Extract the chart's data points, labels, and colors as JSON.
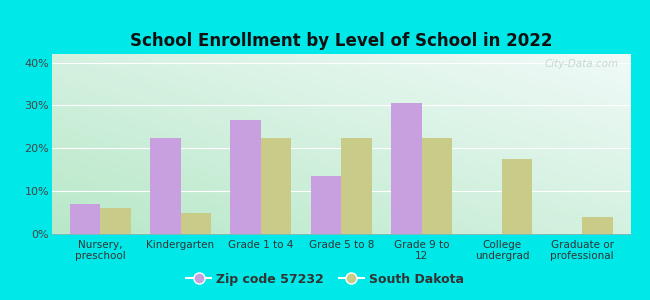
{
  "title": "School Enrollment by Level of School in 2022",
  "categories": [
    "Nursery,\npreschool",
    "Kindergarten",
    "Grade 1 to 4",
    "Grade 5 to 8",
    "Grade 9 to\n12",
    "College\nundergrad",
    "Graduate or\nprofessional"
  ],
  "zip_values": [
    7.0,
    22.5,
    26.5,
    13.5,
    30.5,
    0.0,
    0.0
  ],
  "sd_values": [
    6.0,
    5.0,
    22.5,
    22.5,
    22.5,
    17.5,
    4.0
  ],
  "zip_color": "#c8a0e0",
  "sd_color": "#c8cc88",
  "background_outer": "#00e8e8",
  "grad_bottom_left": "#b8e8c8",
  "grad_top_right": "#f0faf8",
  "ylim": [
    0,
    42
  ],
  "yticks": [
    0,
    10,
    20,
    30,
    40
  ],
  "ytick_labels": [
    "0%",
    "10%",
    "20%",
    "30%",
    "40%"
  ],
  "legend_zip_label": "Zip code 57232",
  "legend_sd_label": "South Dakota",
  "watermark": "City-Data.com",
  "bar_width": 0.38
}
